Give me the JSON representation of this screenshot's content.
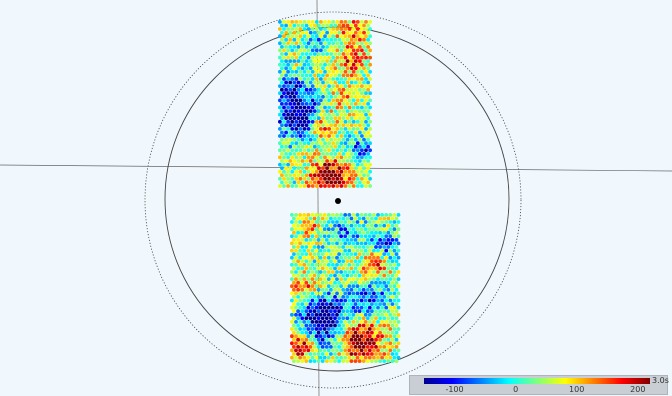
{
  "colorbar": {
    "min": -150,
    "max": 220,
    "colors": [
      "#00008f",
      "#0000ff",
      "#0080ff",
      "#00ffff",
      "#7fff7f",
      "#ffff00",
      "#ff8000",
      "#ff0000",
      "#800000"
    ],
    "ticks": [
      {
        "value": -100,
        "label": "-100"
      },
      {
        "value": 0,
        "label": "0"
      },
      {
        "value": 100,
        "label": "100"
      },
      {
        "value": 200,
        "label": "200"
      }
    ],
    "time_label": "3.0s"
  },
  "scene": {
    "background_color": "#f1f8fd",
    "circle_color": "#444444",
    "center_dot_color": "#000000",
    "panels": [
      {
        "name": "upper-sensor-panel",
        "data_name": "upper-sensor-panel"
      },
      {
        "name": "lower-sensor-panel",
        "data_name": "lower-sensor-panel"
      }
    ]
  }
}
